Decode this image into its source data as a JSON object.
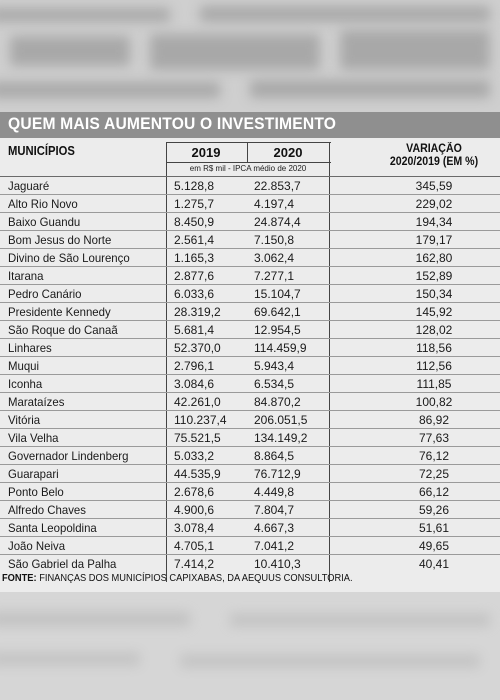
{
  "title": "QUEM MAIS AUMENTOU O INVESTIMENTO",
  "headers": {
    "municipios": "MUNICÍPIOS",
    "y2019": "2019",
    "y2020": "2020",
    "variacao_line1": "VARIAÇÃO",
    "variacao_line2": "2020/2019 (EM %)",
    "unit_note": "em R$ mil - IPCA médio de 2020"
  },
  "rows": [
    {
      "municipio": "Jaguaré",
      "v2019": "5.128,8",
      "v2020": "22.853,7",
      "variacao": "345,59"
    },
    {
      "municipio": "Alto Rio Novo",
      "v2019": "1.275,7",
      "v2020": "4.197,4",
      "variacao": "229,02"
    },
    {
      "municipio": "Baixo Guandu",
      "v2019": "8.450,9",
      "v2020": "24.874,4",
      "variacao": "194,34"
    },
    {
      "municipio": "Bom Jesus do Norte",
      "v2019": "2.561,4",
      "v2020": "7.150,8",
      "variacao": "179,17"
    },
    {
      "municipio": "Divino de São Lourenço",
      "v2019": "1.165,3",
      "v2020": "3.062,4",
      "variacao": "162,80"
    },
    {
      "municipio": "Itarana",
      "v2019": "2.877,6",
      "v2020": "7.277,1",
      "variacao": "152,89"
    },
    {
      "municipio": "Pedro Canário",
      "v2019": "6.033,6",
      "v2020": "15.104,7",
      "variacao": "150,34"
    },
    {
      "municipio": "Presidente Kennedy",
      "v2019": "28.319,2",
      "v2020": "69.642,1",
      "variacao": "145,92"
    },
    {
      "municipio": "São Roque do Canaã",
      "v2019": "5.681,4",
      "v2020": "12.954,5",
      "variacao": "128,02"
    },
    {
      "municipio": "Linhares",
      "v2019": "52.370,0",
      "v2020": "114.459,9",
      "variacao": "118,56"
    },
    {
      "municipio": "Muqui",
      "v2019": "2.796,1",
      "v2020": "5.943,4",
      "variacao": "112,56"
    },
    {
      "municipio": "Iconha",
      "v2019": "3.084,6",
      "v2020": "6.534,5",
      "variacao": "111,85"
    },
    {
      "municipio": "Marataízes",
      "v2019": "42.261,0",
      "v2020": "84.870,2",
      "variacao": "100,82"
    },
    {
      "municipio": "Vitória",
      "v2019": "110.237,4",
      "v2020": "206.051,5",
      "variacao": "86,92"
    },
    {
      "municipio": "Vila Velha",
      "v2019": "75.521,5",
      "v2020": "134.149,2",
      "variacao": "77,63"
    },
    {
      "municipio": "Governador Lindenberg",
      "v2019": "5.033,2",
      "v2020": "8.864,5",
      "variacao": "76,12"
    },
    {
      "municipio": "Guarapari",
      "v2019": "44.535,9",
      "v2020": "76.712,9",
      "variacao": "72,25"
    },
    {
      "municipio": "Ponto Belo",
      "v2019": "2.678,6",
      "v2020": "4.449,8",
      "variacao": "66,12"
    },
    {
      "municipio": "Alfredo Chaves",
      "v2019": "4.900,6",
      "v2020": "7.804,7",
      "variacao": "59,26"
    },
    {
      "municipio": "Santa Leopoldina",
      "v2019": "3.078,4",
      "v2020": "4.667,3",
      "variacao": "51,61"
    },
    {
      "municipio": "João Neiva",
      "v2019": "4.705,1",
      "v2020": "7.041,2",
      "variacao": "49,65"
    },
    {
      "municipio": "São Gabriel da Palha",
      "v2019": "7.414,2",
      "v2020": "10.410,3",
      "variacao": "40,41"
    }
  ],
  "source": {
    "label": "FONTE:",
    "text": " FINANÇAS DOS MUNICÍPIOS CAPIXABAS, DA AEQUUS CONSULTORIA."
  },
  "colors": {
    "banner": "#8f8f8f",
    "paper": "#ececec",
    "text": "#1a1a1a"
  }
}
